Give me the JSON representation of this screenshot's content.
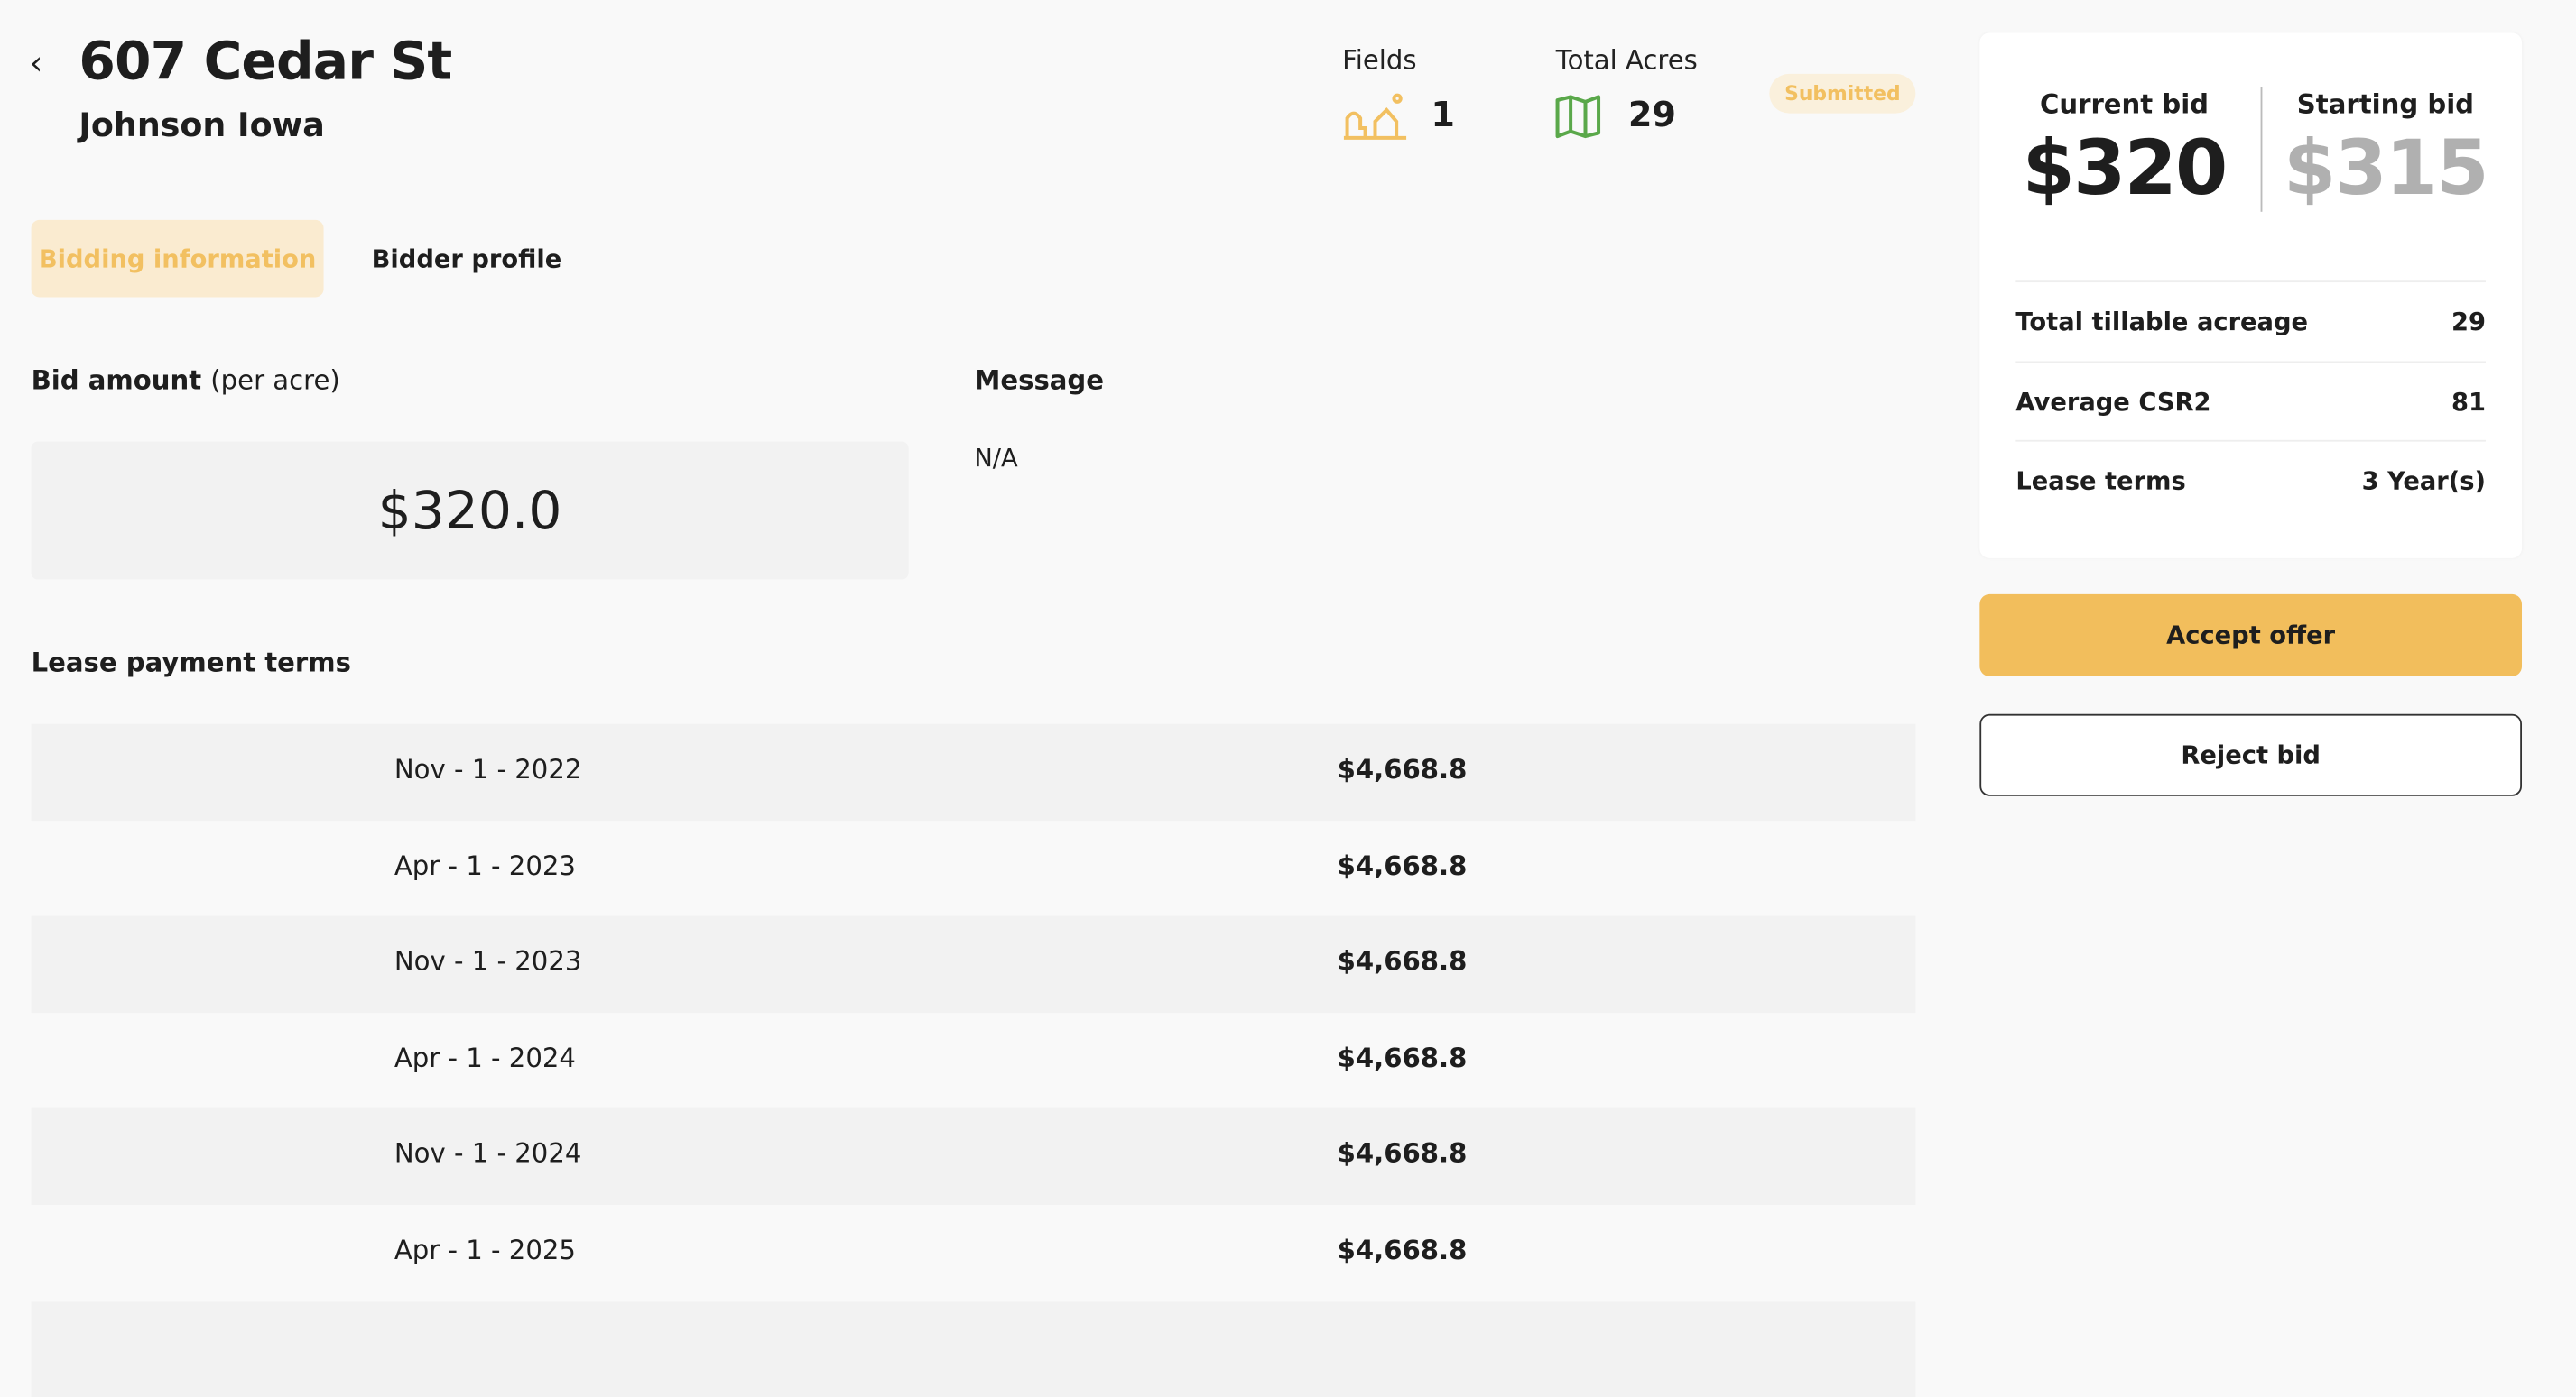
{
  "header": {
    "back_icon": "chevron-left-icon",
    "back": "‹",
    "title": "607 Cedar St",
    "subtitle": "Johnson Iowa",
    "fields_label": "Fields",
    "fields_value": "1",
    "fields_icon": "fields-icon",
    "acres_label": "Total Acres",
    "acres_value": "29",
    "acres_icon": "map-icon",
    "status": "Submitted"
  },
  "colors": {
    "accent": "#f2be5c",
    "accent_text": "#f2c061",
    "accent_bg": "#faebd0",
    "map_green": "#5aa84a"
  },
  "tabs": [
    {
      "label": "Bidding information",
      "active": true
    },
    {
      "label": "Bidder profile",
      "active": false
    }
  ],
  "bid": {
    "label": "Bid amount",
    "label_suffix": "(per acre)",
    "value": "$320.0"
  },
  "message": {
    "label": "Message",
    "value": "N/A"
  },
  "lease": {
    "label": "Lease payment terms",
    "rows": [
      {
        "date": "Nov - 1 - 2022",
        "amount": "$4,668.8"
      },
      {
        "date": "Apr - 1 - 2023",
        "amount": "$4,668.8"
      },
      {
        "date": "Nov - 1 - 2023",
        "amount": "$4,668.8"
      },
      {
        "date": "Apr - 1 - 2024",
        "amount": "$4,668.8"
      },
      {
        "date": "Nov - 1 - 2024",
        "amount": "$4,668.8"
      },
      {
        "date": "Apr - 1 - 2025",
        "amount": "$4,668.8"
      },
      {
        "date": "",
        "amount": ""
      }
    ]
  },
  "summary": {
    "current_label": "Current bid",
    "current_value": "$320",
    "starting_label": "Starting bid",
    "starting_value": "$315",
    "rows": [
      {
        "label": "Total tillable acreage",
        "value": "29"
      },
      {
        "label": "Average CSR2",
        "value": "81"
      },
      {
        "label": "Lease terms",
        "value": "3 Year(s)"
      }
    ]
  },
  "actions": {
    "accept": "Accept offer",
    "reject": "Reject bid"
  }
}
